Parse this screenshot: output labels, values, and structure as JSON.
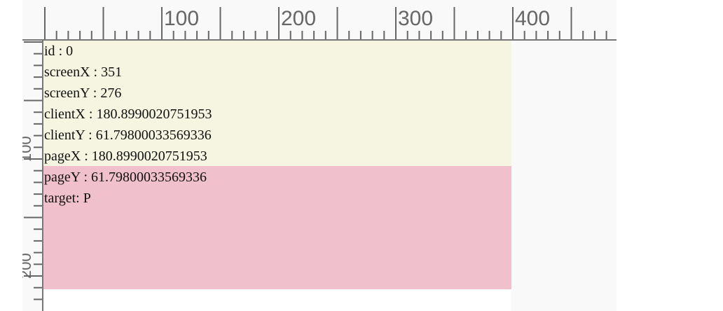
{
  "ruler": {
    "top_labels": [
      "100",
      "200",
      "300",
      "400"
    ],
    "left_labels": [
      "100",
      "200"
    ]
  },
  "event_info": {
    "lines": [
      {
        "key": "id",
        "sep": " : ",
        "value": "0"
      },
      {
        "key": "screenX",
        "sep": " : ",
        "value": "351"
      },
      {
        "key": "screenY",
        "sep": " : ",
        "value": "276"
      },
      {
        "key": "clientX",
        "sep": " : ",
        "value": "180.8990020751953"
      },
      {
        "key": "clientY",
        "sep": " : ",
        "value": "61.79800033569336"
      },
      {
        "key": "pageX",
        "sep": " : ",
        "value": "180.8990020751953"
      },
      {
        "key": "pageY",
        "sep": " : ",
        "value": "61.79800033569336"
      },
      {
        "key": "target",
        "sep": ": ",
        "value": "P"
      }
    ]
  },
  "colors": {
    "upper_box": "#f5f5e1",
    "lower_box": "#f0c0cc",
    "ruler_bg": "#f9f9f9",
    "ruler_ink": "#666666"
  }
}
